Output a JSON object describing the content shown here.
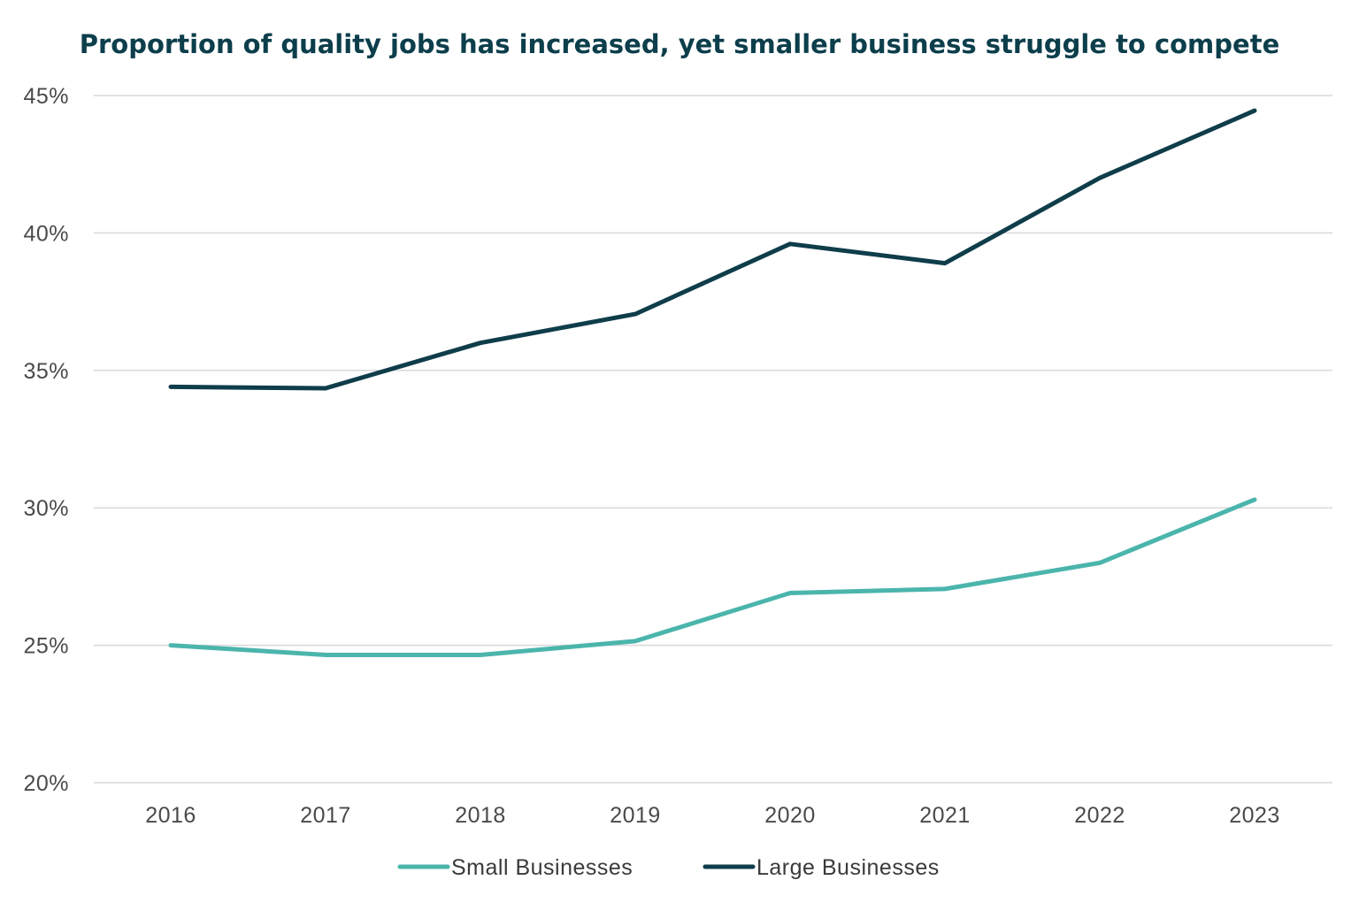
{
  "colors": {
    "small": "#4bb5ac",
    "large": "#0f3d4a",
    "title": "#0c3e4b"
  },
  "chart_data": {
    "type": "line",
    "title": "Proportion of quality jobs has increased, yet smaller business struggle to compete",
    "xlabel": "",
    "ylabel": "",
    "x": [
      "2016",
      "2017",
      "2018",
      "2019",
      "2020",
      "2021",
      "2022",
      "2023"
    ],
    "ylim": [
      20,
      45
    ],
    "yticks": [
      20,
      25,
      30,
      35,
      40,
      45
    ],
    "ytick_labels": [
      "20%",
      "25%",
      "30%",
      "35%",
      "40%",
      "45%"
    ],
    "grid": true,
    "legend_position": "bottom-center",
    "series": [
      {
        "name": "Small Businesses",
        "values": [
          25.0,
          24.65,
          24.65,
          25.15,
          26.9,
          27.05,
          28.0,
          30.3
        ]
      },
      {
        "name": "Large Businesses",
        "values": [
          34.4,
          34.35,
          36.0,
          37.05,
          39.6,
          38.9,
          42.0,
          44.45
        ]
      }
    ]
  }
}
